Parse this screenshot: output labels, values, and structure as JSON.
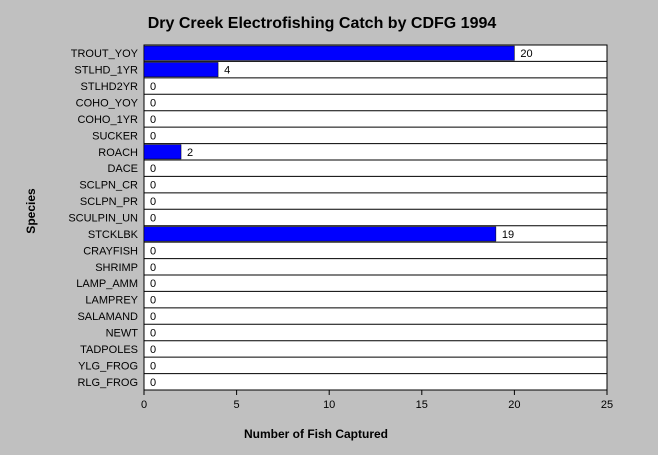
{
  "chart_data": {
    "type": "bar",
    "orientation": "horizontal",
    "title": "Dry Creek Electrofishing Catch by CDFG 1994",
    "xlabel": "Number of Fish Captured",
    "ylabel": "Species",
    "xlim": [
      0,
      25
    ],
    "xticks": [
      "0",
      "5",
      "10",
      "15",
      "20",
      "25"
    ],
    "categories": [
      "TROUT_YOY",
      "STLHD_1YR",
      "STLHD2YR",
      "COHO_YOY",
      "COHO_1YR",
      "SUCKER",
      "ROACH",
      "DACE",
      "SCLPN_CR",
      "SCLPN_PR",
      "SCULPIN_UN",
      "STCKLBK",
      "CRAYFISH",
      "SHRIMP",
      "LAMP_AMM",
      "LAMPREY",
      "SALAMAND",
      "NEWT",
      "TADPOLES",
      "YLG_FROG",
      "RLG_FROG"
    ],
    "values": [
      20,
      4,
      0,
      0,
      0,
      0,
      2,
      0,
      0,
      0,
      0,
      19,
      0,
      0,
      0,
      0,
      0,
      0,
      0,
      0,
      0
    ],
    "value_labels": [
      "20",
      "4",
      "0",
      "0",
      "0",
      "0",
      "2",
      "0",
      "0",
      "0",
      "0",
      "19",
      "0",
      "0",
      "0",
      "0",
      "0",
      "0",
      "0",
      "0",
      "0"
    ],
    "bar_color": "#0000ff",
    "plot_background": "#ffffff",
    "background": "#c0c0c0",
    "grid": "horizontal row lines"
  }
}
